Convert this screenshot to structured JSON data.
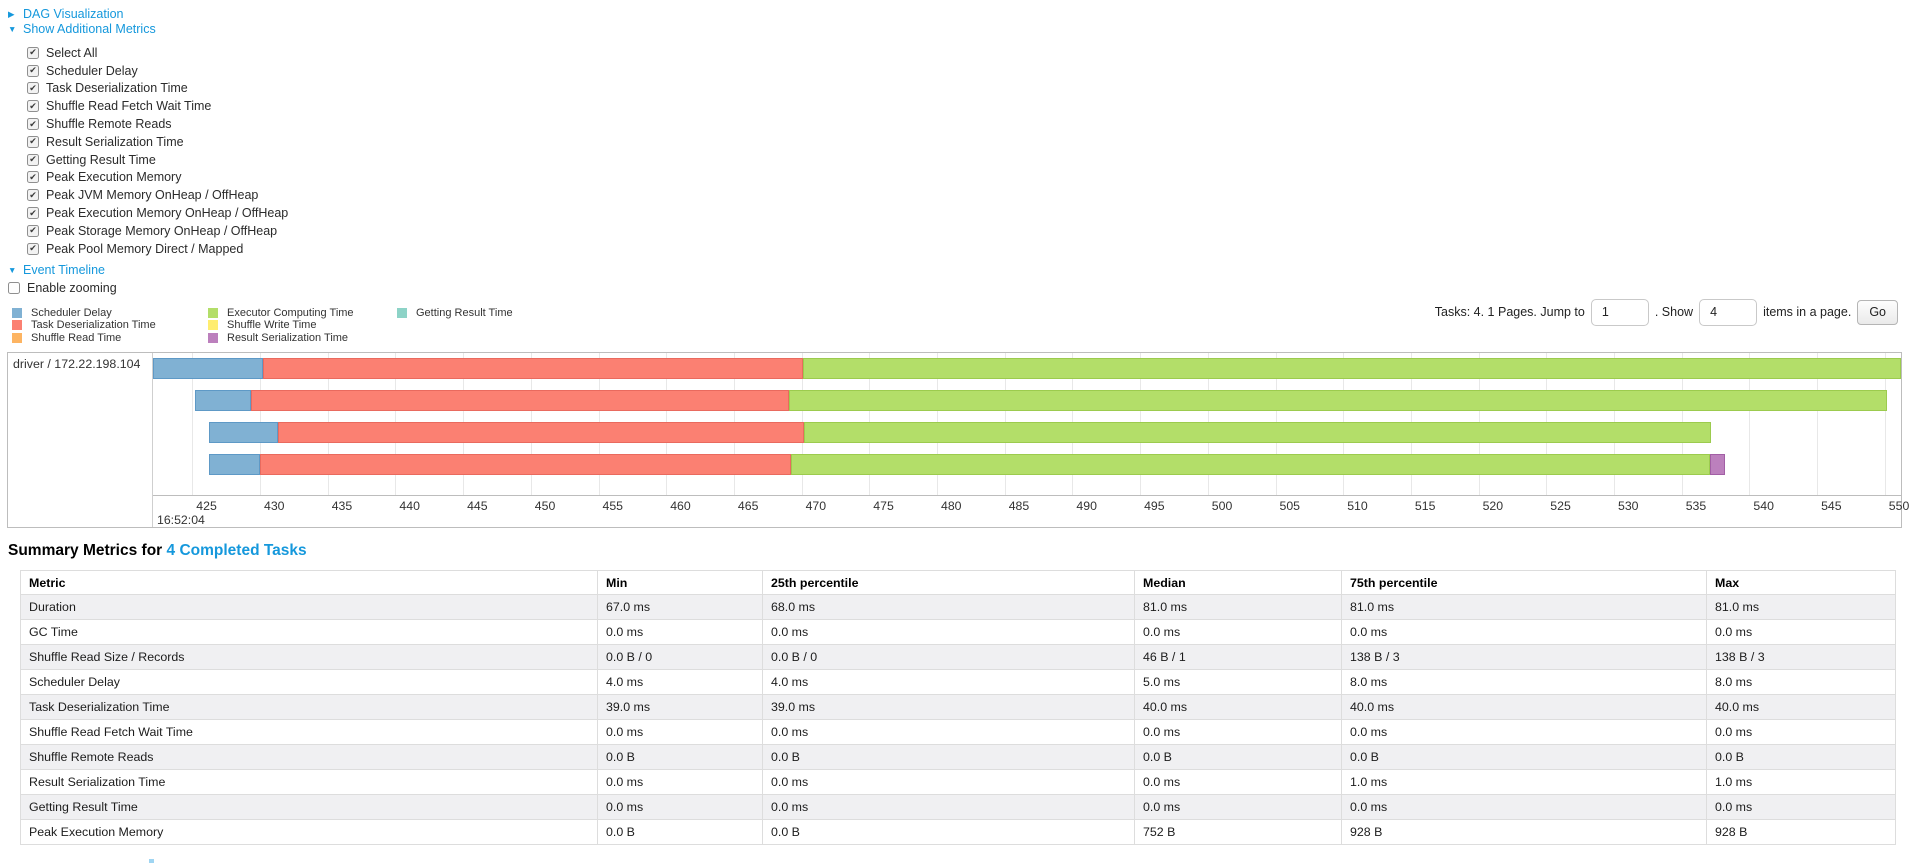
{
  "colors": {
    "link": "#1598dc",
    "stripe": "#f0f0f2",
    "segments": {
      "scheduler_delay": "#80B1D3",
      "task_deserialization": "#FB8072",
      "shuffle_read": "#FDB462",
      "executor_computing": "#B3DE69",
      "shuffle_write": "#FFED6F",
      "result_serialization": "#BC80BD",
      "getting_result": "#8DD3C7"
    },
    "segment_borders": {
      "scheduler_delay": "#5E99C6",
      "task_deserialization": "#E96A5E",
      "shuffle_read": "#E99C48",
      "executor_computing": "#9CCB4E",
      "shuffle_write": "#E6D452",
      "result_serialization": "#A25FA5",
      "getting_result": "#6FBDB0"
    }
  },
  "controls": {
    "dag_label": "DAG Visualization",
    "metrics_label": "Show Additional Metrics",
    "event_timeline_label": "Event Timeline",
    "enable_zooming_label": "Enable zooming",
    "metric_checkboxes": [
      {
        "label": "Select All",
        "checked": true
      },
      {
        "label": "Scheduler Delay",
        "checked": true
      },
      {
        "label": "Task Deserialization Time",
        "checked": true
      },
      {
        "label": "Shuffle Read Fetch Wait Time",
        "checked": true
      },
      {
        "label": "Shuffle Remote Reads",
        "checked": true
      },
      {
        "label": "Result Serialization Time",
        "checked": true
      },
      {
        "label": "Getting Result Time",
        "checked": true
      },
      {
        "label": "Peak Execution Memory",
        "checked": true
      },
      {
        "label": "Peak JVM Memory OnHeap / OffHeap",
        "checked": true
      },
      {
        "label": "Peak Execution Memory OnHeap / OffHeap",
        "checked": true
      },
      {
        "label": "Peak Storage Memory OnHeap / OffHeap",
        "checked": true
      },
      {
        "label": "Peak Pool Memory Direct / Mapped",
        "checked": true
      }
    ]
  },
  "legend": {
    "columns": [
      [
        {
          "key": "scheduler_delay",
          "label": "Scheduler Delay"
        },
        {
          "key": "task_deserialization",
          "label": "Task Deserialization Time"
        },
        {
          "key": "shuffle_read",
          "label": "Shuffle Read Time"
        }
      ],
      [
        {
          "key": "executor_computing",
          "label": "Executor Computing Time"
        },
        {
          "key": "shuffle_write",
          "label": "Shuffle Write Time"
        },
        {
          "key": "result_serialization",
          "label": "Result Serialization Time"
        }
      ],
      [
        {
          "key": "getting_result",
          "label": "Getting Result Time"
        }
      ]
    ]
  },
  "pagination": {
    "tasks_text": "Tasks: 4. 1 Pages. Jump to",
    "jump_value": "1",
    "show_text": ". Show",
    "show_value": "4",
    "items_text": "items in a page.",
    "go_label": "Go"
  },
  "chart_data": {
    "type": "timeline",
    "row_label": "driver / 172.22.198.104",
    "time_of_day": "16:52:04",
    "axis": {
      "unit": "ms",
      "start": 422.1,
      "end": 551.2,
      "first_tick": 425,
      "last_tick": 550,
      "tick_step": 5
    },
    "legend_series": [
      "Scheduler Delay",
      "Task Deserialization Time",
      "Shuffle Read Time",
      "Executor Computing Time",
      "Shuffle Write Time",
      "Result Serialization Time",
      "Getting Result Time"
    ],
    "tasks": [
      {
        "segments": [
          {
            "type": "scheduler_delay",
            "from": 422.1,
            "to": 430.2
          },
          {
            "type": "task_deserialization",
            "from": 430.2,
            "to": 470.1
          },
          {
            "type": "executor_computing",
            "from": 470.1,
            "to": 551.2
          }
        ]
      },
      {
        "segments": [
          {
            "type": "scheduler_delay",
            "from": 425.2,
            "to": 429.3
          },
          {
            "type": "task_deserialization",
            "from": 429.3,
            "to": 469.1
          },
          {
            "type": "executor_computing",
            "from": 469.1,
            "to": 550.2
          }
        ]
      },
      {
        "segments": [
          {
            "type": "scheduler_delay",
            "from": 426.2,
            "to": 431.3
          },
          {
            "type": "task_deserialization",
            "from": 431.3,
            "to": 470.2
          },
          {
            "type": "executor_computing",
            "from": 470.2,
            "to": 537.2
          }
        ]
      },
      {
        "segments": [
          {
            "type": "scheduler_delay",
            "from": 426.2,
            "to": 430.0
          },
          {
            "type": "task_deserialization",
            "from": 430.0,
            "to": 469.2
          },
          {
            "type": "executor_computing",
            "from": 469.2,
            "to": 537.1
          },
          {
            "type": "result_serialization",
            "from": 537.1,
            "to": 538.2
          }
        ]
      }
    ]
  },
  "summary": {
    "title_prefix": "Summary Metrics for",
    "title_link": "4 Completed Tasks",
    "headers": [
      "Metric",
      "Min",
      "25th percentile",
      "Median",
      "75th percentile",
      "Max"
    ],
    "rows": [
      [
        "Duration",
        "67.0 ms",
        "68.0 ms",
        "81.0 ms",
        "81.0 ms",
        "81.0 ms"
      ],
      [
        "GC Time",
        "0.0 ms",
        "0.0 ms",
        "0.0 ms",
        "0.0 ms",
        "0.0 ms"
      ],
      [
        "Shuffle Read Size / Records",
        "0.0 B / 0",
        "0.0 B / 0",
        "46 B / 1",
        "138 B / 3",
        "138 B / 3"
      ],
      [
        "Scheduler Delay",
        "4.0 ms",
        "4.0 ms",
        "5.0 ms",
        "8.0 ms",
        "8.0 ms"
      ],
      [
        "Task Deserialization Time",
        "39.0 ms",
        "39.0 ms",
        "40.0 ms",
        "40.0 ms",
        "40.0 ms"
      ],
      [
        "Shuffle Read Fetch Wait Time",
        "0.0 ms",
        "0.0 ms",
        "0.0 ms",
        "0.0 ms",
        "0.0 ms"
      ],
      [
        "Shuffle Remote Reads",
        "0.0 B",
        "0.0 B",
        "0.0 B",
        "0.0 B",
        "0.0 B"
      ],
      [
        "Result Serialization Time",
        "0.0 ms",
        "0.0 ms",
        "0.0 ms",
        "1.0 ms",
        "1.0 ms"
      ],
      [
        "Getting Result Time",
        "0.0 ms",
        "0.0 ms",
        "0.0 ms",
        "0.0 ms",
        "0.0 ms"
      ],
      [
        "Peak Execution Memory",
        "0.0 B",
        "0.0 B",
        "752 B",
        "928 B",
        "928 B"
      ]
    ]
  }
}
